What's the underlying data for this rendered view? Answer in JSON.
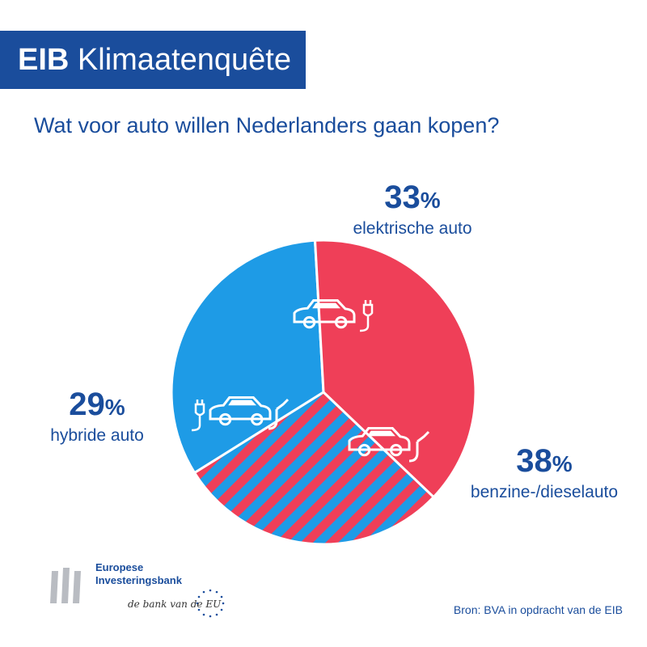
{
  "header": {
    "brand": "EIB",
    "title": "Klimaatenquête"
  },
  "question": "Wat voor auto willen Nederlanders gaan kopen?",
  "colors": {
    "navy": "#1a4d9c",
    "electric": "#1e9be6",
    "fuel": "#ef3f58",
    "hybrid_stripe_a": "#ef3f58",
    "hybrid_stripe_b": "#1e9be6"
  },
  "chart_data": {
    "type": "pie",
    "title": "Wat voor auto willen Nederlanders gaan kopen?",
    "slices": [
      {
        "label": "elektrische auto",
        "value": 33,
        "display": "33",
        "unit": "%",
        "color": "#1e9be6",
        "icon": "electric-car-icon"
      },
      {
        "label": "benzine-/dieselauto",
        "value": 38,
        "display": "38",
        "unit": "%",
        "color": "#ef3f58",
        "icon": "fuel-car-icon"
      },
      {
        "label": "hybride auto",
        "value": 29,
        "display": "29",
        "unit": "%",
        "color": "striped",
        "icon": "hybrid-car-icon"
      }
    ]
  },
  "logo": {
    "name_line1": "Europese",
    "name_line2": "Investeringsbank",
    "tagline": "de bank van de EU"
  },
  "source": "Bron: BVA in opdracht van de EIB"
}
